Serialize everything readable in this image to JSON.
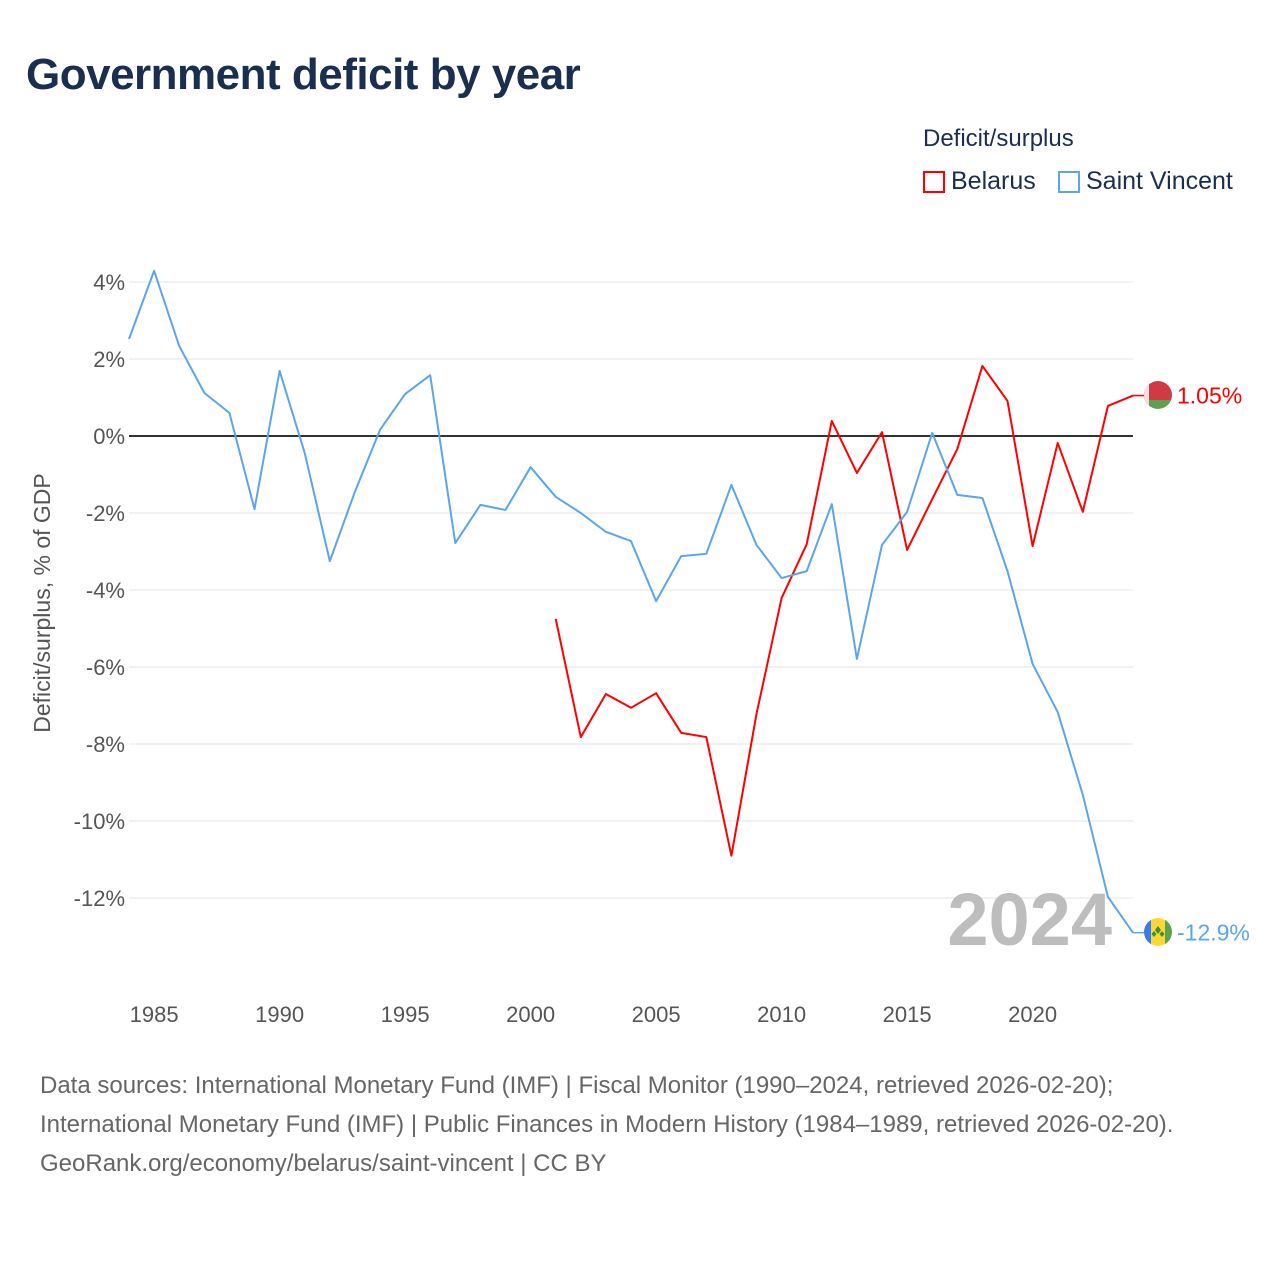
{
  "title": "Government deficit by year",
  "legend": {
    "title": "Deficit/surplus",
    "items": [
      {
        "name": "Belarus",
        "color": "#ff0000"
      },
      {
        "name": "Saint Vincent",
        "color": "#5aa5ec"
      }
    ]
  },
  "watermark_year": "2024",
  "chart_data": {
    "type": "line",
    "title": "Government deficit by year",
    "xlabel": "",
    "ylabel": "Deficit/surplus, % of GDP",
    "xlim": [
      1984,
      2024
    ],
    "ylim": [
      -13.5,
      4.5
    ],
    "x_ticks": [
      1985,
      1990,
      1995,
      2000,
      2005,
      2010,
      2015,
      2020
    ],
    "y_ticks": [
      4,
      2,
      0,
      -2,
      -4,
      -6,
      -8,
      -10,
      -12
    ],
    "y_tick_labels": [
      "4%",
      "2%",
      "0%",
      "-2%",
      "-4%",
      "-6%",
      "-8%",
      "-10%",
      "-12%"
    ],
    "grid": true,
    "legend_position": "top-right",
    "series": [
      {
        "name": "Belarus",
        "color": "#ff0000",
        "end_label": "1.05%",
        "x": [
          2001,
          2002,
          2003,
          2004,
          2005,
          2006,
          2007,
          2008,
          2009,
          2010,
          2011,
          2012,
          2013,
          2014,
          2015,
          2016,
          2017,
          2018,
          2019,
          2020,
          2021,
          2022,
          2023,
          2024
        ],
        "values": [
          -4.75,
          -7.82,
          -6.7,
          -7.06,
          -6.68,
          -7.71,
          -7.82,
          -10.9,
          -7.22,
          -4.21,
          -2.81,
          0.39,
          -0.96,
          0.1,
          -2.96,
          -1.64,
          -0.34,
          1.82,
          0.91,
          -2.86,
          -0.18,
          -1.97,
          0.78,
          1.05
        ]
      },
      {
        "name": "Saint Vincent",
        "color": "#5aa5ec",
        "end_label": "-12.9%",
        "x": [
          1984,
          1985,
          1986,
          1987,
          1988,
          1989,
          1990,
          1991,
          1992,
          1993,
          1994,
          1995,
          1996,
          1997,
          1998,
          1999,
          2000,
          2001,
          2002,
          2003,
          2004,
          2005,
          2006,
          2007,
          2008,
          2009,
          2010,
          2011,
          2012,
          2013,
          2014,
          2015,
          2016,
          2017,
          2018,
          2019,
          2020,
          2021,
          2022,
          2023,
          2024
        ],
        "values": [
          2.52,
          4.29,
          2.34,
          1.12,
          0.6,
          -1.9,
          1.69,
          -0.44,
          -3.25,
          -1.45,
          0.16,
          1.09,
          1.58,
          -2.78,
          -1.79,
          -1.92,
          -0.81,
          -1.58,
          -2.0,
          -2.49,
          -2.73,
          -4.29,
          -3.12,
          -3.06,
          -1.27,
          -2.83,
          -3.69,
          -3.51,
          -1.77,
          -5.79,
          -2.83,
          -1.97,
          0.08,
          -1.53,
          -1.61,
          -3.51,
          -5.92,
          -7.17,
          -9.32,
          -11.97,
          -12.9
        ]
      }
    ]
  },
  "footer": {
    "sources": "Data sources: International Monetary Fund (IMF) | Fiscal Monitor (1990–2024, retrieved 2026-02-20); International Monetary Fund (IMF) | Public Finances in Modern History (1984–1989, retrieved 2026-02-20).",
    "credit": "GeoRank.org/economy/belarus/saint-vincent | CC BY"
  }
}
